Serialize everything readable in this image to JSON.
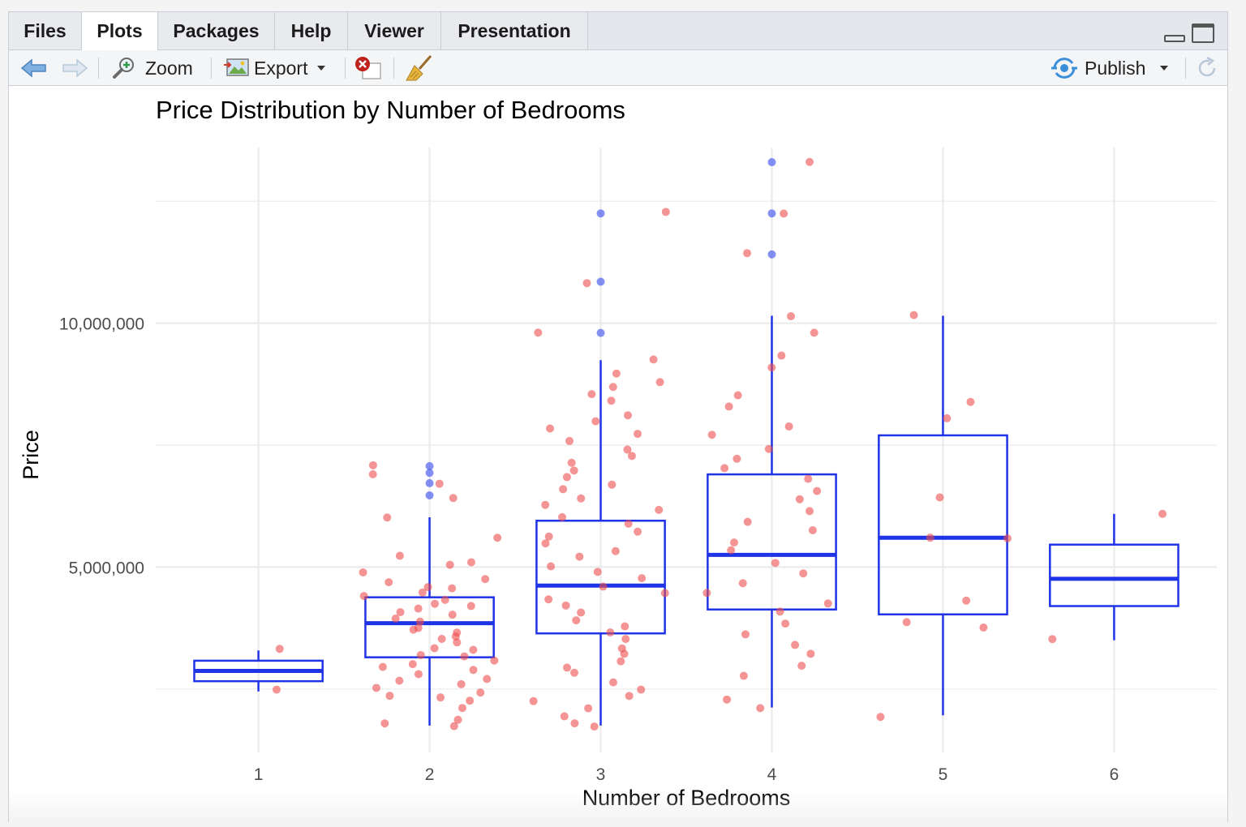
{
  "tabs": [
    {
      "label": "Files",
      "active": false
    },
    {
      "label": "Plots",
      "active": true
    },
    {
      "label": "Packages",
      "active": false
    },
    {
      "label": "Help",
      "active": false
    },
    {
      "label": "Viewer",
      "active": false
    },
    {
      "label": "Presentation",
      "active": false
    }
  ],
  "toolbar": {
    "zoom_label": "Zoom",
    "export_label": "Export",
    "publish_label": "Publish",
    "icons": [
      "back-arrow-icon",
      "forward-arrow-icon",
      "zoom-icon",
      "export-image-icon",
      "remove-plot-icon",
      "broom-icon",
      "publish-icon",
      "refresh-icon"
    ]
  },
  "colors": {
    "box": "#1f34e6",
    "point_outlier": "#4455ee",
    "point": "#ef4d4d",
    "grid": "#ebebeb",
    "text": "#000000",
    "tick_text": "#4d4d4d"
  },
  "chart_data": {
    "type": "boxplot with jittered points",
    "title": "Price Distribution by Number of Bedrooms",
    "xlabel": "Number of Bedrooms",
    "ylabel": "Price",
    "categories": [
      "1",
      "2",
      "3",
      "4",
      "5",
      "6"
    ],
    "y_ticks": [
      {
        "value": 5000000,
        "label": "5,000,000"
      },
      {
        "value": 10000000,
        "label": "10,000,000"
      }
    ],
    "ylim": [
      1200000,
      13600000
    ],
    "grid": true,
    "boxes": [
      {
        "category": "1",
        "min": 2450000,
        "q1": 2660000,
        "median": 2870000,
        "q3": 3080000,
        "max": 3290000
      },
      {
        "category": "2",
        "min": 1750000,
        "q1": 3150000,
        "median": 3850000,
        "q3": 4380000,
        "max": 6020000
      },
      {
        "category": "3",
        "min": 1750000,
        "q1": 3640000,
        "median": 4620000,
        "q3": 5950000,
        "max": 9240000
      },
      {
        "category": "4",
        "min": 2120000,
        "q1": 4130000,
        "median": 5250000,
        "q3": 6900000,
        "max": 10150000
      },
      {
        "category": "5",
        "min": 1960000,
        "q1": 4030000,
        "median": 5600000,
        "q3": 7700000,
        "max": 10150000
      },
      {
        "category": "6",
        "min": 3500000,
        "q1": 4200000,
        "median": 4760000,
        "q3": 5460000,
        "max": 6090000
      }
    ],
    "outliers": [
      {
        "category": "2",
        "y": 7070000
      },
      {
        "category": "2",
        "y": 6930000
      },
      {
        "category": "2",
        "y": 6720000
      },
      {
        "category": "2",
        "y": 6470000
      },
      {
        "category": "3",
        "y": 12250000
      },
      {
        "category": "3",
        "y": 10850000
      },
      {
        "category": "3",
        "y": 9800000
      },
      {
        "category": "4",
        "y": 13300000
      },
      {
        "category": "4",
        "y": 12250000
      },
      {
        "category": "4",
        "y": 11410000
      }
    ],
    "points": [
      {
        "category": "1",
        "values": [
          3310000,
          2520000
        ]
      },
      {
        "category": "2",
        "values": [
          1750000,
          1820000,
          1890000,
          2100000,
          2240000,
          2310000,
          2380000,
          2450000,
          2520000,
          2590000,
          2660000,
          2730000,
          2800000,
          2870000,
          2940000,
          3010000,
          3080000,
          3150000,
          3220000,
          3290000,
          3360000,
          3430000,
          3500000,
          3570000,
          3640000,
          3710000,
          3780000,
          3850000,
          3920000,
          3990000,
          4060000,
          4130000,
          4200000,
          4270000,
          4340000,
          4410000,
          4480000,
          4550000,
          4620000,
          4690000,
          4760000,
          4900000,
          5040000,
          5110000,
          5250000,
          5600000,
          6020000,
          6440000,
          6720000,
          6930000,
          7070000
        ]
      },
      {
        "category": "3",
        "values": [
          1750000,
          1820000,
          1960000,
          2100000,
          2240000,
          2380000,
          2520000,
          2660000,
          2800000,
          2940000,
          3080000,
          3220000,
          3360000,
          3500000,
          3640000,
          3780000,
          3920000,
          4060000,
          4200000,
          4340000,
          4480000,
          4620000,
          4760000,
          4900000,
          5040000,
          5180000,
          5320000,
          5460000,
          5600000,
          5740000,
          5880000,
          6020000,
          6160000,
          6300000,
          6440000,
          6580000,
          6720000,
          6860000,
          7000000,
          7140000,
          7280000,
          7420000,
          7560000,
          7700000,
          7840000,
          7980000,
          8120000,
          8400000,
          8540000,
          8680000,
          8820000,
          8960000,
          9240000,
          9800000,
          10850000,
          12250000
        ]
      },
      {
        "category": "4",
        "values": [
          2100000,
          2310000,
          2800000,
          3010000,
          3220000,
          3430000,
          3640000,
          3850000,
          4060000,
          4270000,
          4480000,
          4690000,
          4900000,
          5110000,
          5320000,
          5530000,
          5740000,
          5950000,
          6160000,
          6370000,
          6580000,
          6790000,
          7000000,
          7210000,
          7420000,
          7700000,
          7910000,
          8260000,
          8540000,
          9100000,
          9310000,
          9800000,
          10150000,
          11410000,
          12250000,
          13300000
        ]
      },
      {
        "category": "5",
        "values": [
          1960000,
          3780000,
          3850000,
          4340000,
          5600000,
          5600000,
          6440000,
          8050000,
          8400000,
          10150000
        ]
      },
      {
        "category": "6",
        "values": [
          3500000,
          6090000
        ]
      }
    ]
  }
}
